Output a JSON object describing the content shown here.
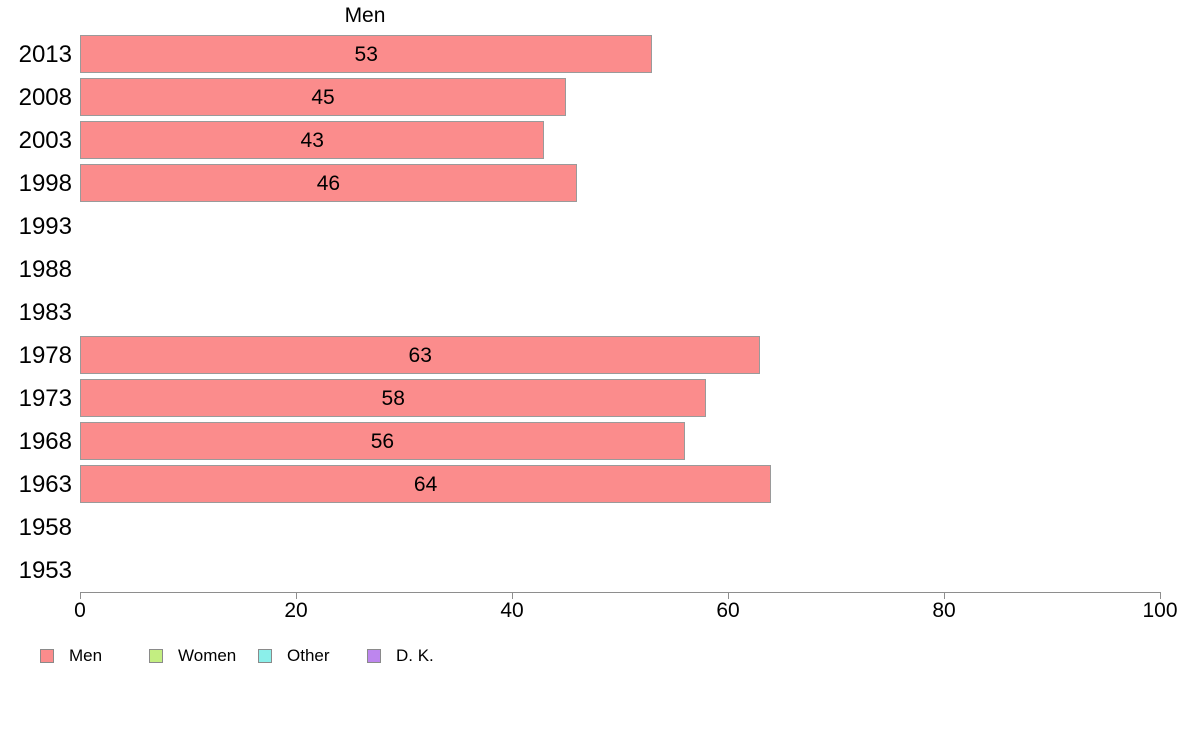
{
  "chart_data": {
    "type": "bar",
    "orientation": "horizontal",
    "title": "Men",
    "categories": [
      "2013",
      "2008",
      "2003",
      "1998",
      "1993",
      "1988",
      "1983",
      "1978",
      "1973",
      "1968",
      "1963",
      "1958",
      "1953"
    ],
    "values": [
      53,
      45,
      43,
      46,
      null,
      null,
      null,
      63,
      58,
      56,
      64,
      null,
      null
    ],
    "xlabel": "",
    "ylabel": "",
    "xlim": [
      0,
      100
    ],
    "xticks": [
      0,
      20,
      40,
      60,
      80,
      100
    ],
    "grid": false,
    "bar_color": "#FB8C8C",
    "bar_border_color": "#9a9a9a",
    "axis_color": "#8e8e8e",
    "value_labels_shown": true,
    "legend": {
      "position": "bottom-left",
      "entries": [
        {
          "label": "Men",
          "color": "#FB8C8C"
        },
        {
          "label": "Women",
          "color": "#C3EE81"
        },
        {
          "label": "Other",
          "color": "#8BEFEA"
        },
        {
          "label": "D. K.",
          "color": "#BD86EE"
        }
      ]
    }
  }
}
